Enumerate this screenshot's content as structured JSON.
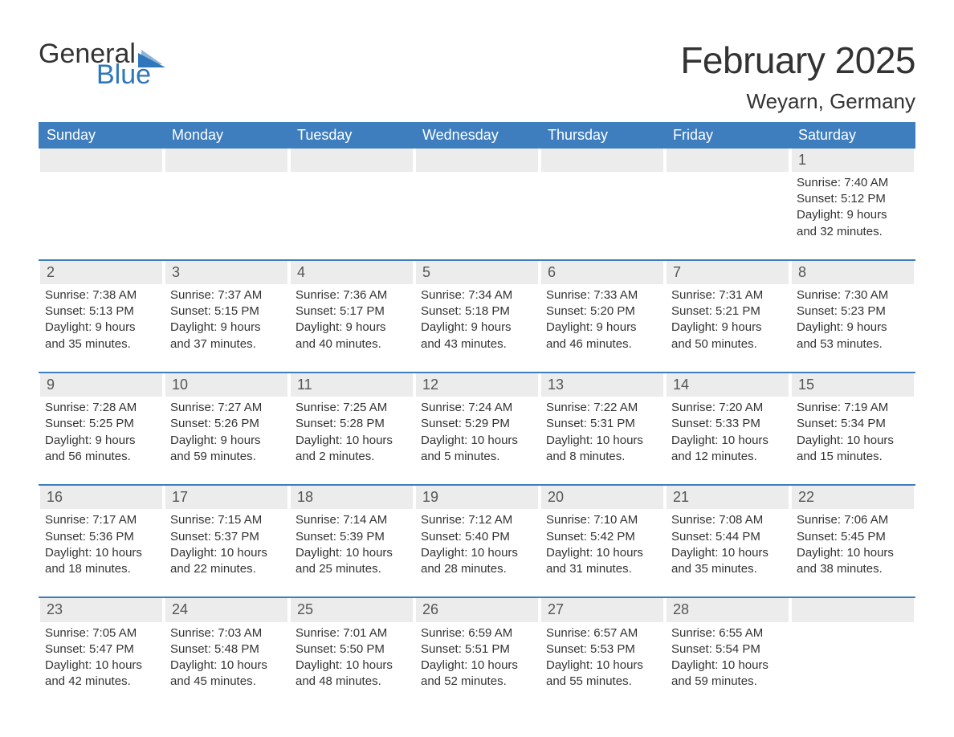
{
  "logo": {
    "text1": "General",
    "text2": "Blue",
    "tri_color": "#2f77bb"
  },
  "title": "February 2025",
  "location": "Weyarn, Germany",
  "colors": {
    "header_bg": "#3e7ebe",
    "header_text": "#ffffff",
    "daynum_bg": "#ececec",
    "daynum_text": "#555555",
    "body_text": "#333333",
    "rule": "#3e7ebe",
    "page_bg": "#ffffff",
    "logo_blue": "#2f77bb"
  },
  "typography": {
    "title_fontsize": 46,
    "location_fontsize": 26,
    "dow_fontsize": 18,
    "daynum_fontsize": 18,
    "body_fontsize": 15
  },
  "days_of_week": [
    "Sunday",
    "Monday",
    "Tuesday",
    "Wednesday",
    "Thursday",
    "Friday",
    "Saturday"
  ],
  "weeks": [
    [
      {
        "n": "",
        "sunrise": "",
        "sunset": "",
        "daylight": ""
      },
      {
        "n": "",
        "sunrise": "",
        "sunset": "",
        "daylight": ""
      },
      {
        "n": "",
        "sunrise": "",
        "sunset": "",
        "daylight": ""
      },
      {
        "n": "",
        "sunrise": "",
        "sunset": "",
        "daylight": ""
      },
      {
        "n": "",
        "sunrise": "",
        "sunset": "",
        "daylight": ""
      },
      {
        "n": "",
        "sunrise": "",
        "sunset": "",
        "daylight": ""
      },
      {
        "n": "1",
        "sunrise": "Sunrise: 7:40 AM",
        "sunset": "Sunset: 5:12 PM",
        "daylight": "Daylight: 9 hours and 32 minutes."
      }
    ],
    [
      {
        "n": "2",
        "sunrise": "Sunrise: 7:38 AM",
        "sunset": "Sunset: 5:13 PM",
        "daylight": "Daylight: 9 hours and 35 minutes."
      },
      {
        "n": "3",
        "sunrise": "Sunrise: 7:37 AM",
        "sunset": "Sunset: 5:15 PM",
        "daylight": "Daylight: 9 hours and 37 minutes."
      },
      {
        "n": "4",
        "sunrise": "Sunrise: 7:36 AM",
        "sunset": "Sunset: 5:17 PM",
        "daylight": "Daylight: 9 hours and 40 minutes."
      },
      {
        "n": "5",
        "sunrise": "Sunrise: 7:34 AM",
        "sunset": "Sunset: 5:18 PM",
        "daylight": "Daylight: 9 hours and 43 minutes."
      },
      {
        "n": "6",
        "sunrise": "Sunrise: 7:33 AM",
        "sunset": "Sunset: 5:20 PM",
        "daylight": "Daylight: 9 hours and 46 minutes."
      },
      {
        "n": "7",
        "sunrise": "Sunrise: 7:31 AM",
        "sunset": "Sunset: 5:21 PM",
        "daylight": "Daylight: 9 hours and 50 minutes."
      },
      {
        "n": "8",
        "sunrise": "Sunrise: 7:30 AM",
        "sunset": "Sunset: 5:23 PM",
        "daylight": "Daylight: 9 hours and 53 minutes."
      }
    ],
    [
      {
        "n": "9",
        "sunrise": "Sunrise: 7:28 AM",
        "sunset": "Sunset: 5:25 PM",
        "daylight": "Daylight: 9 hours and 56 minutes."
      },
      {
        "n": "10",
        "sunrise": "Sunrise: 7:27 AM",
        "sunset": "Sunset: 5:26 PM",
        "daylight": "Daylight: 9 hours and 59 minutes."
      },
      {
        "n": "11",
        "sunrise": "Sunrise: 7:25 AM",
        "sunset": "Sunset: 5:28 PM",
        "daylight": "Daylight: 10 hours and 2 minutes."
      },
      {
        "n": "12",
        "sunrise": "Sunrise: 7:24 AM",
        "sunset": "Sunset: 5:29 PM",
        "daylight": "Daylight: 10 hours and 5 minutes."
      },
      {
        "n": "13",
        "sunrise": "Sunrise: 7:22 AM",
        "sunset": "Sunset: 5:31 PM",
        "daylight": "Daylight: 10 hours and 8 minutes."
      },
      {
        "n": "14",
        "sunrise": "Sunrise: 7:20 AM",
        "sunset": "Sunset: 5:33 PM",
        "daylight": "Daylight: 10 hours and 12 minutes."
      },
      {
        "n": "15",
        "sunrise": "Sunrise: 7:19 AM",
        "sunset": "Sunset: 5:34 PM",
        "daylight": "Daylight: 10 hours and 15 minutes."
      }
    ],
    [
      {
        "n": "16",
        "sunrise": "Sunrise: 7:17 AM",
        "sunset": "Sunset: 5:36 PM",
        "daylight": "Daylight: 10 hours and 18 minutes."
      },
      {
        "n": "17",
        "sunrise": "Sunrise: 7:15 AM",
        "sunset": "Sunset: 5:37 PM",
        "daylight": "Daylight: 10 hours and 22 minutes."
      },
      {
        "n": "18",
        "sunrise": "Sunrise: 7:14 AM",
        "sunset": "Sunset: 5:39 PM",
        "daylight": "Daylight: 10 hours and 25 minutes."
      },
      {
        "n": "19",
        "sunrise": "Sunrise: 7:12 AM",
        "sunset": "Sunset: 5:40 PM",
        "daylight": "Daylight: 10 hours and 28 minutes."
      },
      {
        "n": "20",
        "sunrise": "Sunrise: 7:10 AM",
        "sunset": "Sunset: 5:42 PM",
        "daylight": "Daylight: 10 hours and 31 minutes."
      },
      {
        "n": "21",
        "sunrise": "Sunrise: 7:08 AM",
        "sunset": "Sunset: 5:44 PM",
        "daylight": "Daylight: 10 hours and 35 minutes."
      },
      {
        "n": "22",
        "sunrise": "Sunrise: 7:06 AM",
        "sunset": "Sunset: 5:45 PM",
        "daylight": "Daylight: 10 hours and 38 minutes."
      }
    ],
    [
      {
        "n": "23",
        "sunrise": "Sunrise: 7:05 AM",
        "sunset": "Sunset: 5:47 PM",
        "daylight": "Daylight: 10 hours and 42 minutes."
      },
      {
        "n": "24",
        "sunrise": "Sunrise: 7:03 AM",
        "sunset": "Sunset: 5:48 PM",
        "daylight": "Daylight: 10 hours and 45 minutes."
      },
      {
        "n": "25",
        "sunrise": "Sunrise: 7:01 AM",
        "sunset": "Sunset: 5:50 PM",
        "daylight": "Daylight: 10 hours and 48 minutes."
      },
      {
        "n": "26",
        "sunrise": "Sunrise: 6:59 AM",
        "sunset": "Sunset: 5:51 PM",
        "daylight": "Daylight: 10 hours and 52 minutes."
      },
      {
        "n": "27",
        "sunrise": "Sunrise: 6:57 AM",
        "sunset": "Sunset: 5:53 PM",
        "daylight": "Daylight: 10 hours and 55 minutes."
      },
      {
        "n": "28",
        "sunrise": "Sunrise: 6:55 AM",
        "sunset": "Sunset: 5:54 PM",
        "daylight": "Daylight: 10 hours and 59 minutes."
      },
      {
        "n": "",
        "sunrise": "",
        "sunset": "",
        "daylight": ""
      }
    ]
  ]
}
